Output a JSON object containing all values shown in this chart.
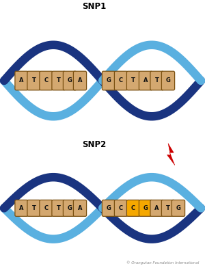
{
  "title1": "SNP1",
  "title2": "SNP2",
  "copyright": "© Orangutan Foundation International",
  "strand1_color": "#1a3480",
  "strand2_color": "#5ab0e0",
  "base_color_normal": "#d4a870",
  "base_color_highlight": "#f5a800",
  "base_text_color": "#111111",
  "background_color": "#ffffff",
  "snp1_left_bases": [
    "A",
    "T",
    "C",
    "T",
    "G",
    "A"
  ],
  "snp1_right_bases": [
    "G",
    "C",
    "T",
    "A",
    "T",
    "G"
  ],
  "snp2_left_bases": [
    "A",
    "T",
    "C",
    "T",
    "G",
    "A"
  ],
  "snp2_right_bases": [
    "G",
    "C",
    "C",
    "G",
    "A",
    "T",
    "G"
  ],
  "snp2_highlight_indices": [
    2,
    3
  ],
  "lightning_color": "#cc0000",
  "lw_strand": 9
}
